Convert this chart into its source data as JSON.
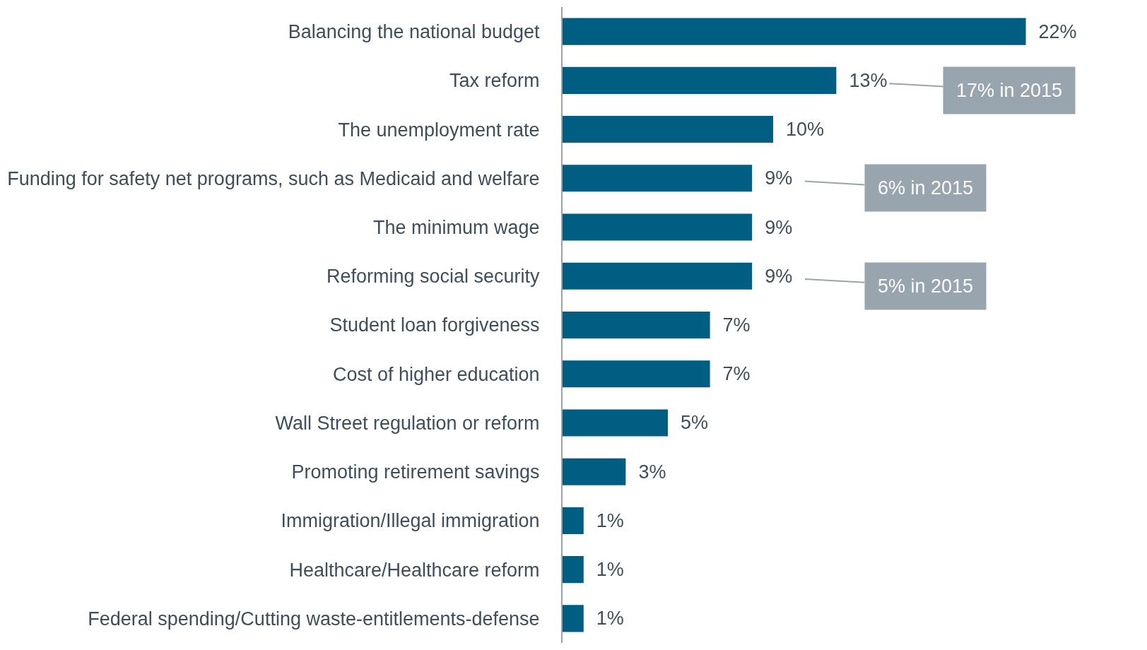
{
  "chart_data": {
    "type": "bar",
    "orientation": "horizontal",
    "categories": [
      "Balancing the national budget",
      "Tax reform",
      "The unemployment rate",
      "Funding for safety net programs, such as Medicaid and welfare",
      "The minimum wage",
      "Reforming social security",
      "Student loan forgiveness",
      "Cost of higher education",
      "Wall Street regulation or reform",
      "Promoting retirement savings",
      "Immigration/Illegal immigration",
      "Healthcare/Healthcare reform",
      "Federal spending/Cutting waste-entitlements-defense"
    ],
    "values": [
      22,
      13,
      10,
      9,
      9,
      9,
      7,
      7,
      5,
      3,
      1,
      1,
      1
    ],
    "value_labels": [
      "22%",
      "13%",
      "10%",
      "9%",
      "9%",
      "9%",
      "7%",
      "7%",
      "5%",
      "3%",
      "1%",
      "1%",
      "1%"
    ],
    "color": "#005e82",
    "annotations": [
      "17% in 2015",
      "6% in 2015",
      "5% in 2015"
    ],
    "legend": false
  }
}
